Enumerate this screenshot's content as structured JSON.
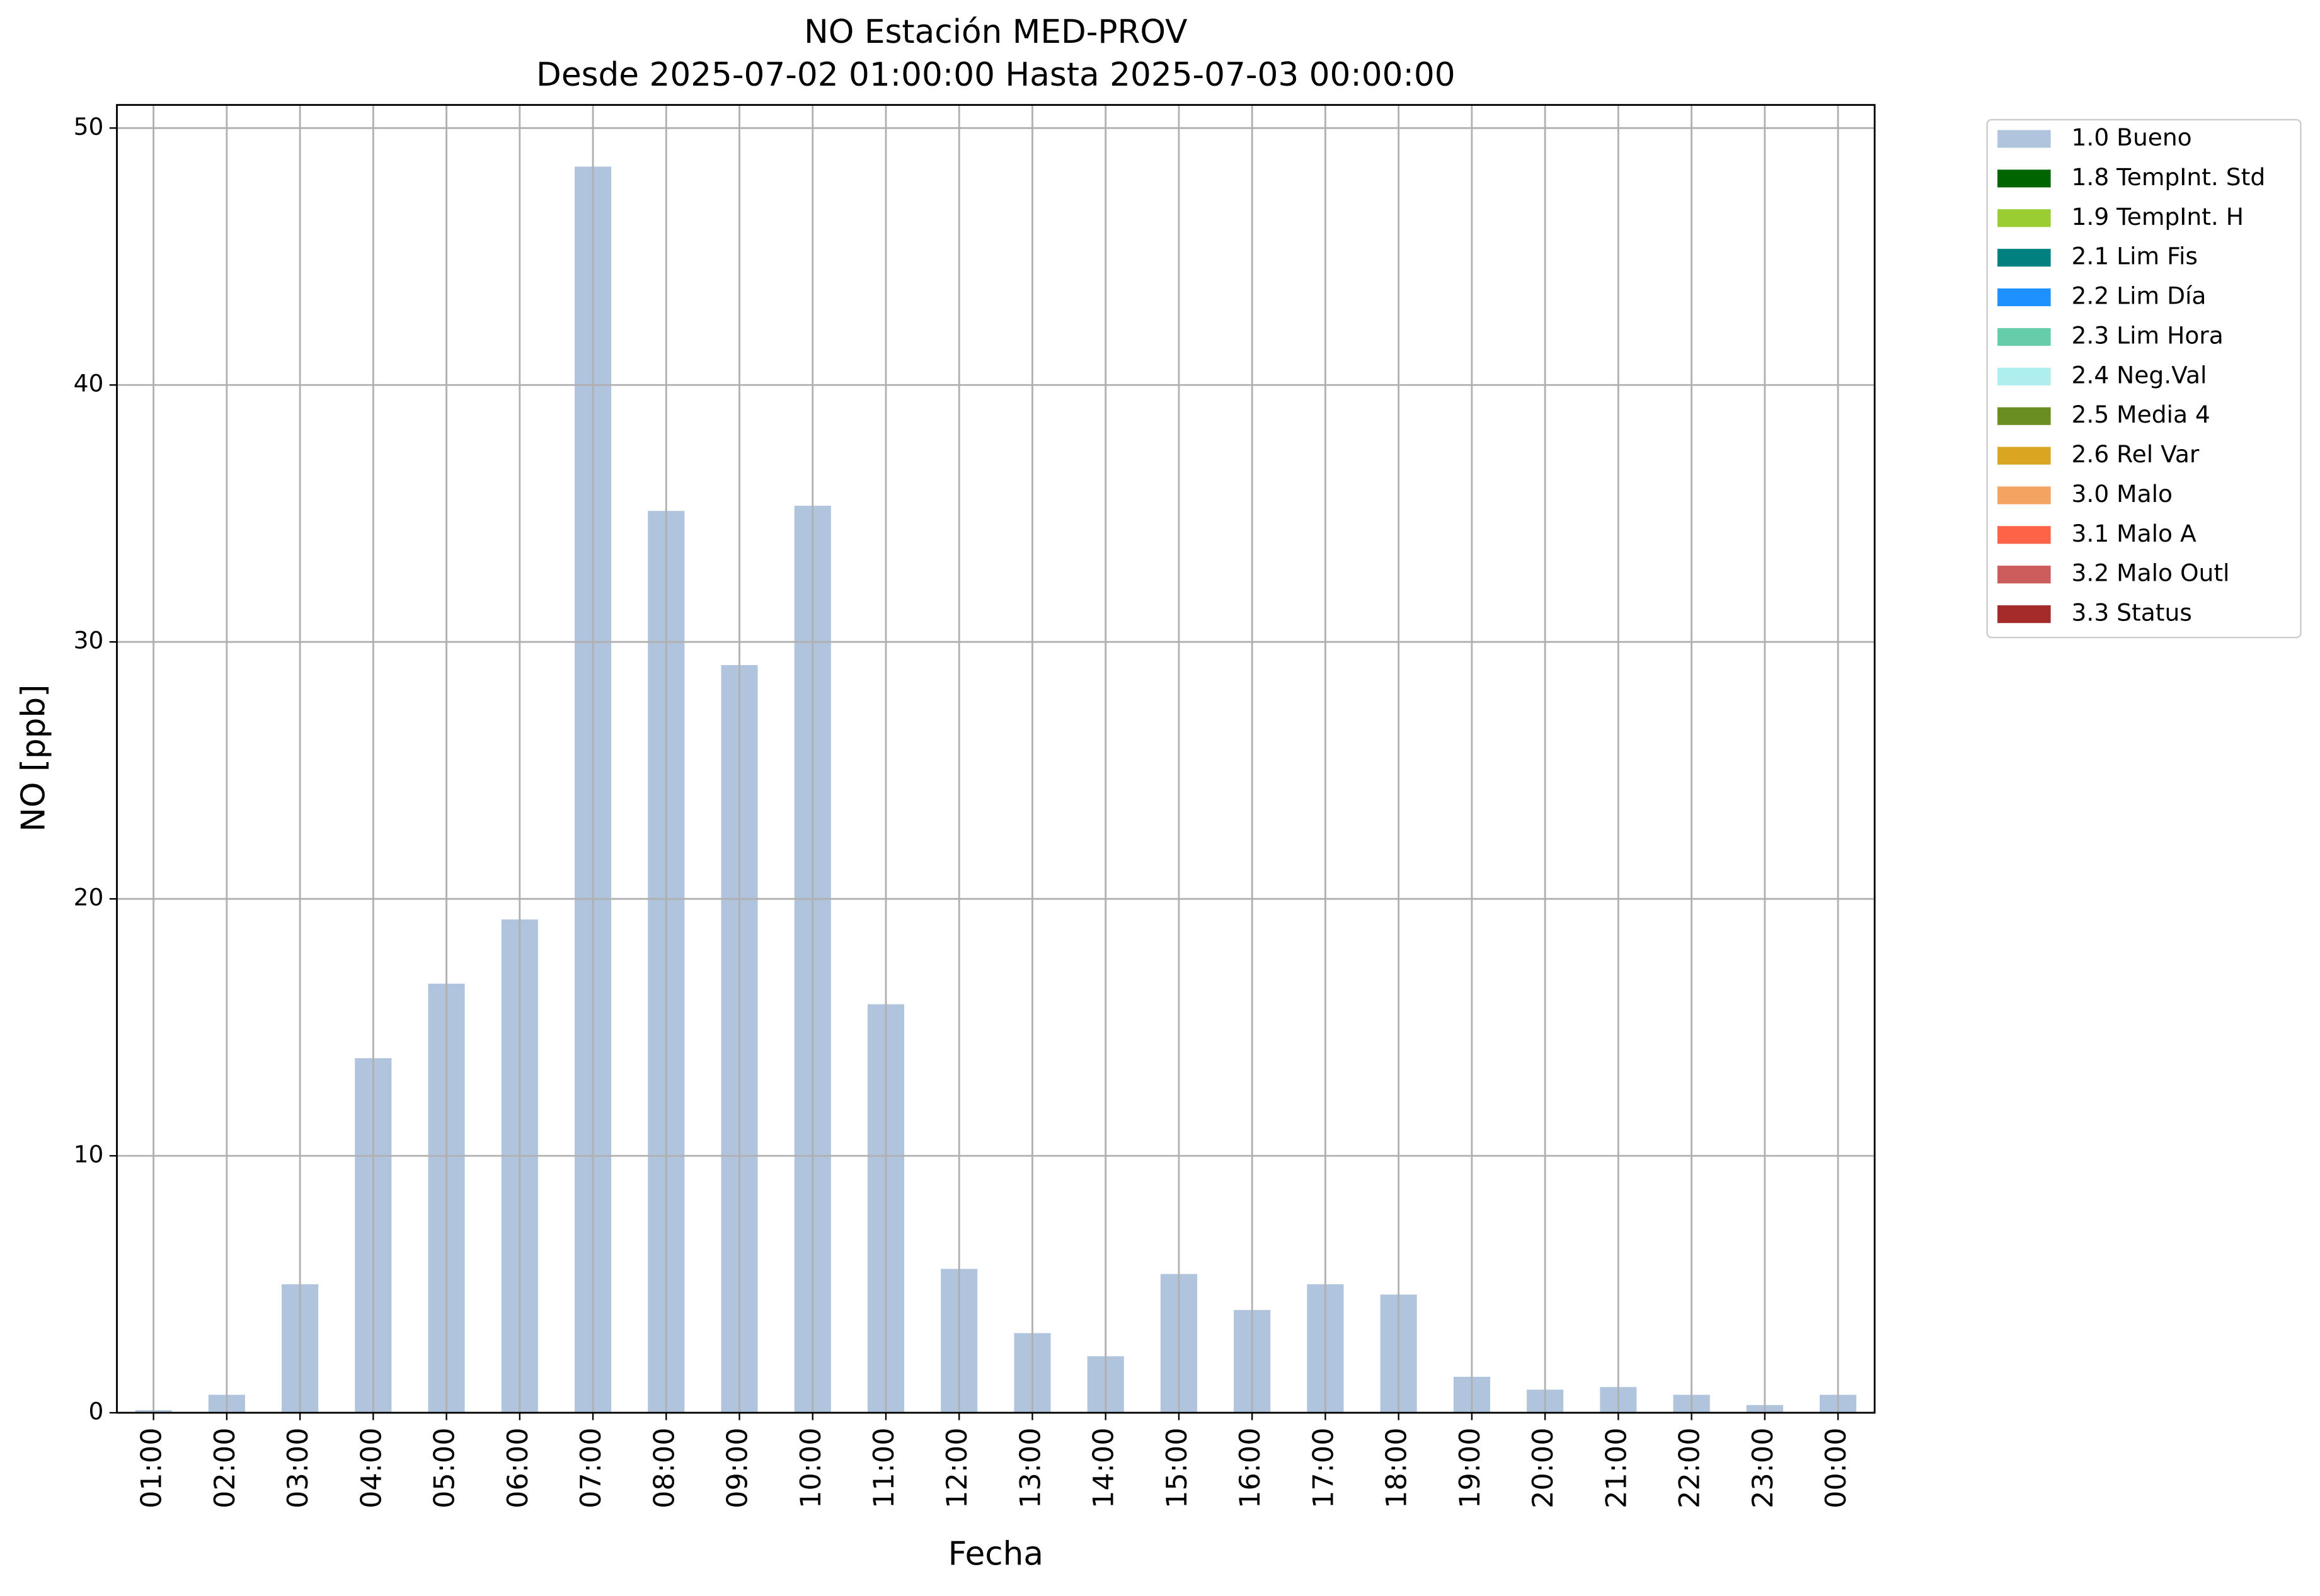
{
  "chart_data": {
    "type": "bar",
    "title": "NO Estación MED-PROV",
    "subtitle": "Desde 2025-07-02 01:00:00 Hasta 2025-07-03 00:00:00",
    "x_label": "Fecha",
    "y_label": "NO [ppb]",
    "categories": [
      "01:00",
      "02:00",
      "03:00",
      "04:00",
      "05:00",
      "06:00",
      "07:00",
      "08:00",
      "09:00",
      "10:00",
      "11:00",
      "12:00",
      "13:00",
      "14:00",
      "15:00",
      "16:00",
      "17:00",
      "18:00",
      "19:00",
      "20:00",
      "21:00",
      "22:00",
      "23:00",
      "00:00"
    ],
    "series": [
      {
        "name": "1.0 Bueno",
        "color": "#b0c4de",
        "values": [
          0.1,
          0.7,
          5.0,
          13.8,
          16.7,
          19.2,
          48.5,
          35.1,
          29.1,
          35.3,
          15.9,
          5.6,
          3.1,
          2.2,
          5.4,
          4.0,
          5.0,
          4.6,
          1.4,
          0.9,
          1.0,
          0.7,
          0.3,
          0.7
        ]
      },
      {
        "name": "1.8 TempInt. Std",
        "color": "#006400"
      },
      {
        "name": "1.9 TempInt. H",
        "color": "#9acd32"
      },
      {
        "name": "2.1 Lim Fis",
        "color": "#008080"
      },
      {
        "name": "2.2 Lim Día",
        "color": "#1e90ff"
      },
      {
        "name": "2.3 Lim Hora",
        "color": "#66cdaa"
      },
      {
        "name": "2.4 Neg.Val",
        "color": "#afeeee"
      },
      {
        "name": "2.5 Media 4",
        "color": "#6b8e23"
      },
      {
        "name": "2.6 Rel Var",
        "color": "#daa520"
      },
      {
        "name": "3.0 Malo",
        "color": "#f4a460"
      },
      {
        "name": "3.1 Malo A",
        "color": "#ff6347"
      },
      {
        "name": "3.2 Malo Outl",
        "color": "#cd5c5c"
      },
      {
        "name": "3.3 Status",
        "color": "#a52a2a"
      }
    ],
    "ylim": [
      0,
      50.9
    ],
    "yticks": [
      0,
      10,
      20,
      30,
      40,
      50
    ],
    "grid": true,
    "legend": "outside-upper-right"
  }
}
